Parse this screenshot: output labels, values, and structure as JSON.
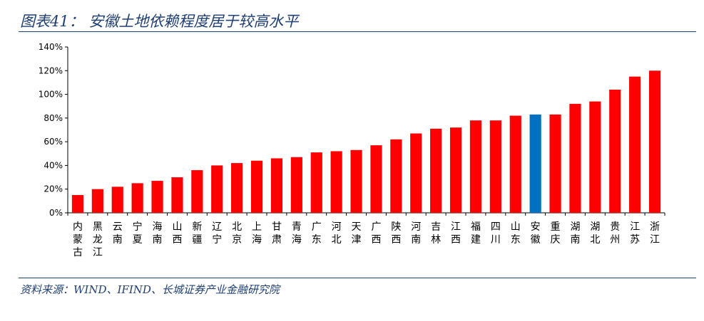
{
  "figure": {
    "title": "图表41：  安徽土地依赖程度居于较高水平",
    "source": "资料来源：WIND、IFIND、长城证券产业金融研究院"
  },
  "colors": {
    "bar": "#ff0000",
    "highlight": "#0070c0",
    "axis": "#000000"
  },
  "chart_data": {
    "type": "bar",
    "categories": [
      "内蒙古",
      "黑龙江",
      "云南",
      "宁夏",
      "海南",
      "山西",
      "新疆",
      "辽宁",
      "北京",
      "上海",
      "甘肃",
      "青海",
      "广东",
      "河北",
      "天津",
      "广西",
      "陕西",
      "河南",
      "吉林",
      "江西",
      "福建",
      "四川",
      "山东",
      "安徽",
      "重庆",
      "湖南",
      "湖北",
      "贵州",
      "江苏",
      "浙江"
    ],
    "values": [
      15,
      20,
      22,
      25,
      27,
      30,
      36,
      40,
      42,
      44,
      46,
      47,
      51,
      52,
      53,
      57,
      62,
      67,
      71,
      72,
      78,
      78,
      82,
      83,
      83,
      92,
      94,
      104,
      115,
      120
    ],
    "highlight_index": 23,
    "ylim": [
      0,
      140
    ],
    "yticks": [
      "0%",
      "20%",
      "40%",
      "60%",
      "80%",
      "100%",
      "120%",
      "140%"
    ],
    "ytick_values": [
      0,
      20,
      40,
      60,
      80,
      100,
      120,
      140
    ],
    "grid": false,
    "legend": "none"
  }
}
